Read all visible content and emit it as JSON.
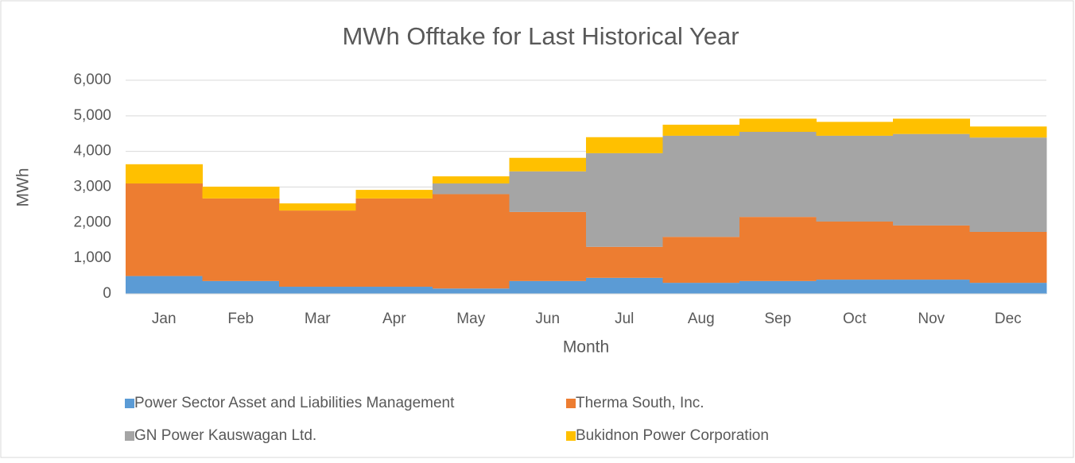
{
  "chart_data": {
    "type": "stacked_bar",
    "title": "MWh Offtake for Last Historical Year",
    "x_label": "Month",
    "y_label": "MWh",
    "categories": [
      "Jan",
      "Feb",
      "Mar",
      "Apr",
      "May",
      "Jun",
      "Jul",
      "Aug",
      "Sep",
      "Oct",
      "Nov",
      "Dec"
    ],
    "series": [
      {
        "name": "Power Sector Asset and Liabilities Management",
        "color": "#5b9bd5",
        "values": [
          500,
          360,
          200,
          200,
          150,
          360,
          450,
          310,
          360,
          400,
          400,
          310
        ]
      },
      {
        "name": "Therma South, Inc.",
        "color": "#ed7d31",
        "values": [
          2600,
          2320,
          2140,
          2480,
          2650,
          1940,
          870,
          1290,
          1800,
          1630,
          1520,
          1430
        ]
      },
      {
        "name": "GN Power Kauswagan Ltd.",
        "color": "#a5a5a5",
        "values": [
          0,
          0,
          0,
          0,
          300,
          1140,
          2630,
          2840,
          2390,
          2410,
          2570,
          2650
        ]
      },
      {
        "name": "Bukidnon Power Corporation",
        "color": "#ffc000",
        "values": [
          540,
          330,
          200,
          240,
          200,
          380,
          450,
          310,
          370,
          390,
          430,
          310
        ]
      }
    ],
    "ylim": [
      0,
      6000
    ],
    "yticks": [
      0,
      {
        "value": 1000,
        "label": "1,000"
      },
      {
        "value": 2000,
        "label": "2,000"
      },
      {
        "value": 3000,
        "label": "3,000"
      },
      {
        "value": 4000,
        "label": "4,000"
      },
      {
        "value": 5000,
        "label": "5,000"
      },
      {
        "value": 6000,
        "label": "6,000"
      }
    ],
    "grid": true,
    "legend": "bottom"
  }
}
